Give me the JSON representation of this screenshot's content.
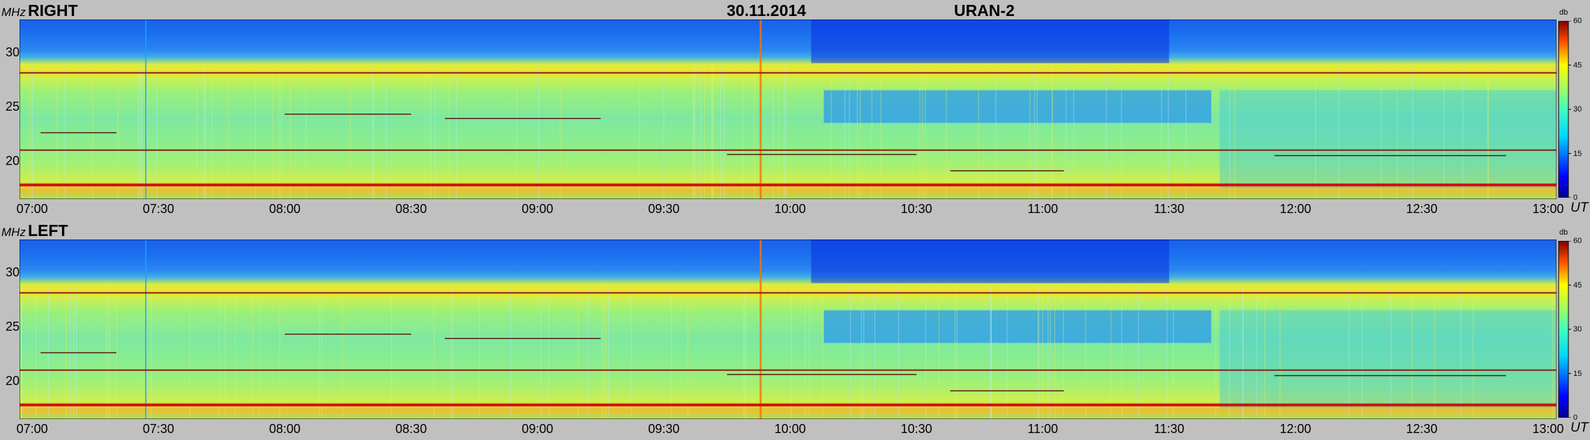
{
  "header": {
    "date": "30.11.2014",
    "instrument": "URAN-2"
  },
  "axis_units": {
    "y": "MHz",
    "x": "UT",
    "colorbar": "db"
  },
  "chart_data": [
    {
      "type": "heatmap",
      "title": "RIGHT",
      "xlabel": "UT",
      "ylabel": "MHz",
      "x_ticks": [
        "07:00",
        "07:30",
        "08:00",
        "08:30",
        "09:00",
        "09:30",
        "10:00",
        "10:30",
        "11:00",
        "11:30",
        "12:00",
        "12:30",
        "13:00"
      ],
      "y_ticks": [
        30,
        25,
        20
      ],
      "xlim": [
        "06:57",
        "13:02"
      ],
      "ylim": [
        16.5,
        33
      ],
      "colorbar": {
        "label": "db",
        "ticks": [
          60,
          45,
          30,
          15,
          0
        ],
        "range": [
          0,
          60
        ]
      },
      "intensity_bands": [
        {
          "mhz": [
            28.5,
            33
          ],
          "level": "low"
        },
        {
          "mhz": [
            26.5,
            28.5
          ],
          "level": "high"
        },
        {
          "mhz": [
            16.5,
            26.5
          ],
          "level": "medium"
        }
      ],
      "interference_lines_mhz": [
        28.1,
        21.0,
        17.8
      ]
    },
    {
      "type": "heatmap",
      "title": "LEFT",
      "xlabel": "UT",
      "ylabel": "MHz",
      "x_ticks": [
        "07:00",
        "07:30",
        "08:00",
        "08:30",
        "09:00",
        "09:30",
        "10:00",
        "10:30",
        "11:00",
        "11:30",
        "12:00",
        "12:30",
        "13:00"
      ],
      "y_ticks": [
        30,
        25,
        20
      ],
      "xlim": [
        "06:57",
        "13:02"
      ],
      "ylim": [
        16.5,
        33
      ],
      "colorbar": {
        "label": "db",
        "ticks": [
          60,
          45,
          30,
          15,
          0
        ],
        "range": [
          0,
          60
        ]
      },
      "intensity_bands": [
        {
          "mhz": [
            28.5,
            33
          ],
          "level": "low"
        },
        {
          "mhz": [
            26.5,
            28.5
          ],
          "level": "high"
        },
        {
          "mhz": [
            16.5,
            26.5
          ],
          "level": "medium"
        }
      ],
      "interference_lines_mhz": [
        28.1,
        21.0,
        17.8
      ]
    }
  ]
}
